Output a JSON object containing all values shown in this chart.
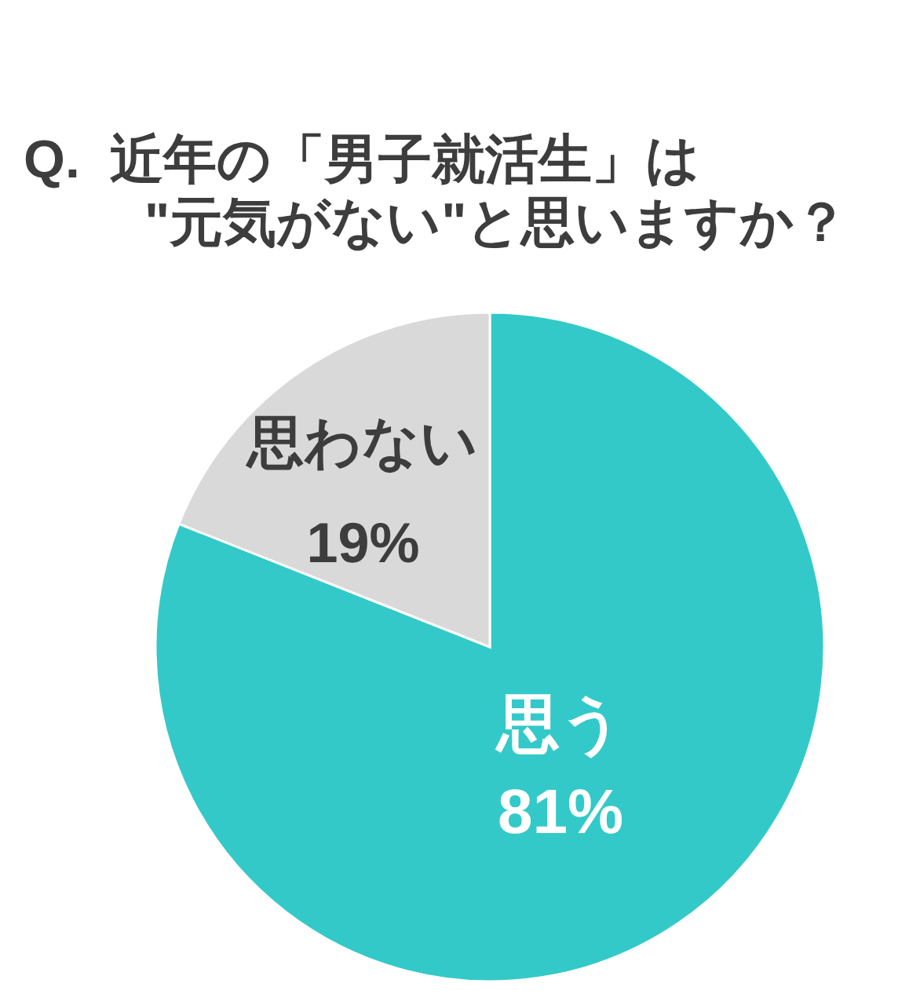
{
  "chart_data": {
    "type": "pie",
    "title": "Q.  近年の「男子就活生」は\n\"元気がない\"と思いますか？",
    "categories": [
      "思う",
      "思わない"
    ],
    "values": [
      81,
      19
    ],
    "colors": [
      "#33c9c9",
      "#d9d9d9"
    ],
    "value_labels": [
      "81%",
      "19%"
    ]
  }
}
